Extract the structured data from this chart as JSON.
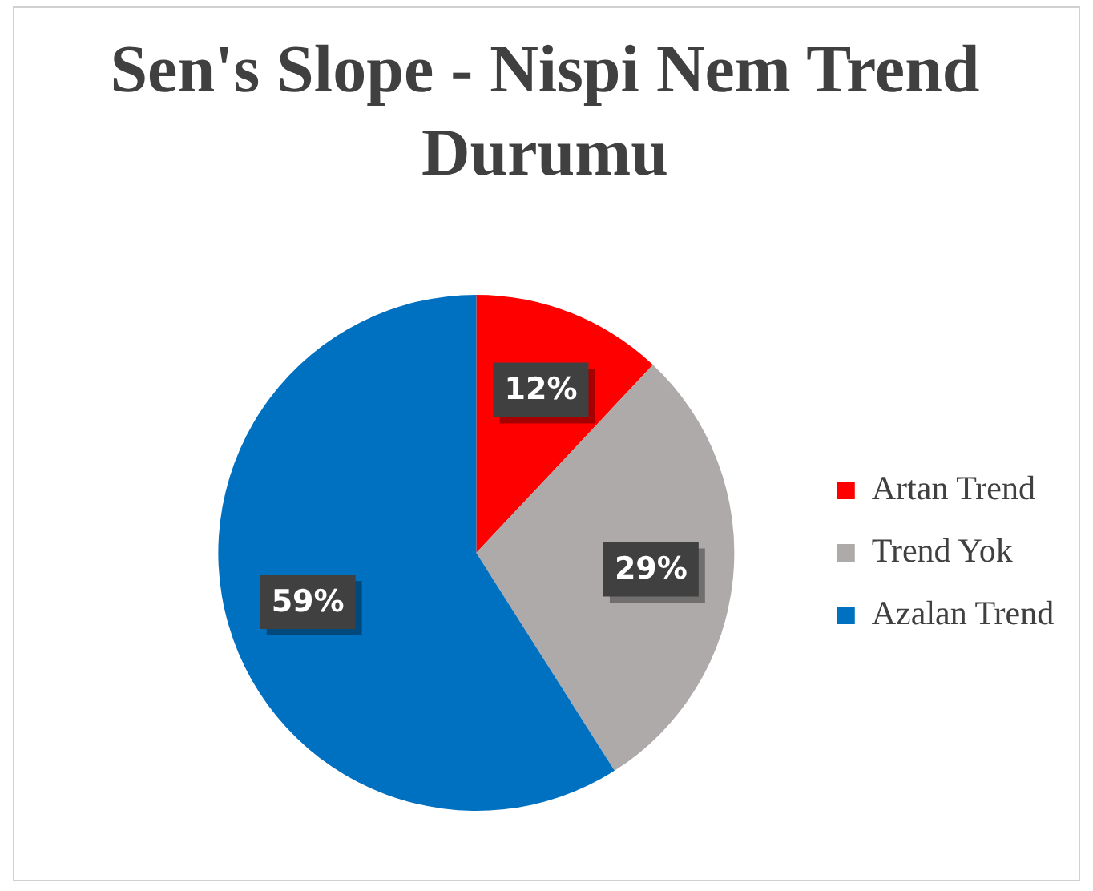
{
  "chart_data": {
    "type": "pie",
    "title": "Sen's Slope - Nispi Nem Trend Durumu",
    "categories": [
      "Artan Trend",
      "Trend Yok",
      "Azalan Trend"
    ],
    "values": [
      12,
      29,
      59
    ],
    "colors": [
      "#ff0000",
      "#aeaaaa",
      "#0070c0"
    ],
    "value_labels": [
      "12%",
      "29%",
      "59%"
    ],
    "legend": "right"
  }
}
